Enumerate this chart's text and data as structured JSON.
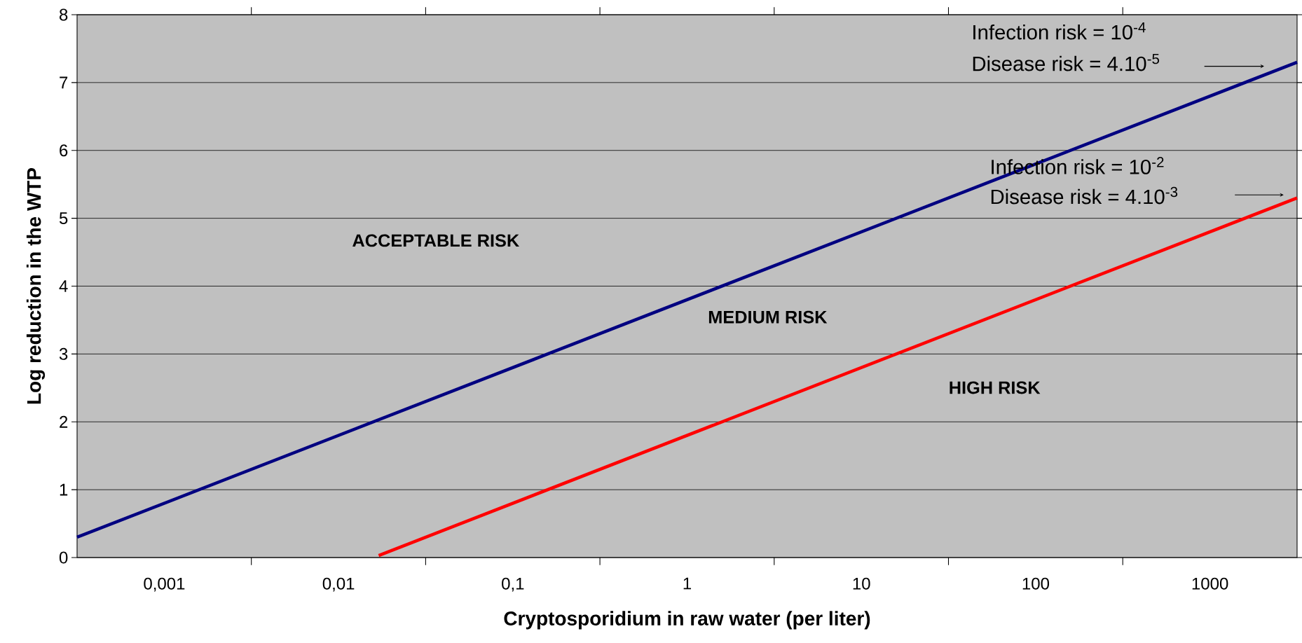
{
  "chart_data": {
    "type": "line",
    "xlabel": "Cryptosporidium in raw water (per liter)",
    "ylabel": "Log reduction in the WTP",
    "series": [
      {
        "color": "#000080",
        "x": [
          0.000316,
          3162
        ],
        "values": [
          0.3,
          7.3
        ]
      },
      {
        "color": "#ff0000",
        "x": [
          0.017,
          3162
        ],
        "values": [
          0.03,
          5.3
        ]
      }
    ],
    "log": "x",
    "xlim": [
      0.000316,
      3162
    ],
    "ylim": [
      0,
      8
    ],
    "xticks": [
      {
        "value": 0.001,
        "label": "0,001"
      },
      {
        "value": 0.01,
        "label": "0,01"
      },
      {
        "value": 0.1,
        "label": "0,1"
      },
      {
        "value": 1,
        "label": "1"
      },
      {
        "value": 10,
        "label": "10"
      },
      {
        "value": 100,
        "label": "100"
      },
      {
        "value": 1000,
        "label": "1000"
      },
      {
        "value": 0.00316,
        "label": null
      },
      {
        "value": 0.0316,
        "label": null
      },
      {
        "value": 0.316,
        "label": null
      },
      {
        "value": 3.16,
        "label": null
      },
      {
        "value": 31.6,
        "label": null
      },
      {
        "value": 316,
        "label": null
      }
    ],
    "yticks": [
      0,
      1,
      2,
      3,
      4,
      5,
      6,
      7,
      8
    ],
    "grid": "y",
    "annotations": [
      "Infection risk = 10$^{-4}$",
      "Disease risk = 4.10$^{-5}$",
      "Infection risk = 10$^{-2}$",
      "Disease risk = 4.10$^{-3}$",
      "ACCEPTABLE RISK",
      "MEDIUM RISK",
      "HIGH RISK"
    ]
  }
}
